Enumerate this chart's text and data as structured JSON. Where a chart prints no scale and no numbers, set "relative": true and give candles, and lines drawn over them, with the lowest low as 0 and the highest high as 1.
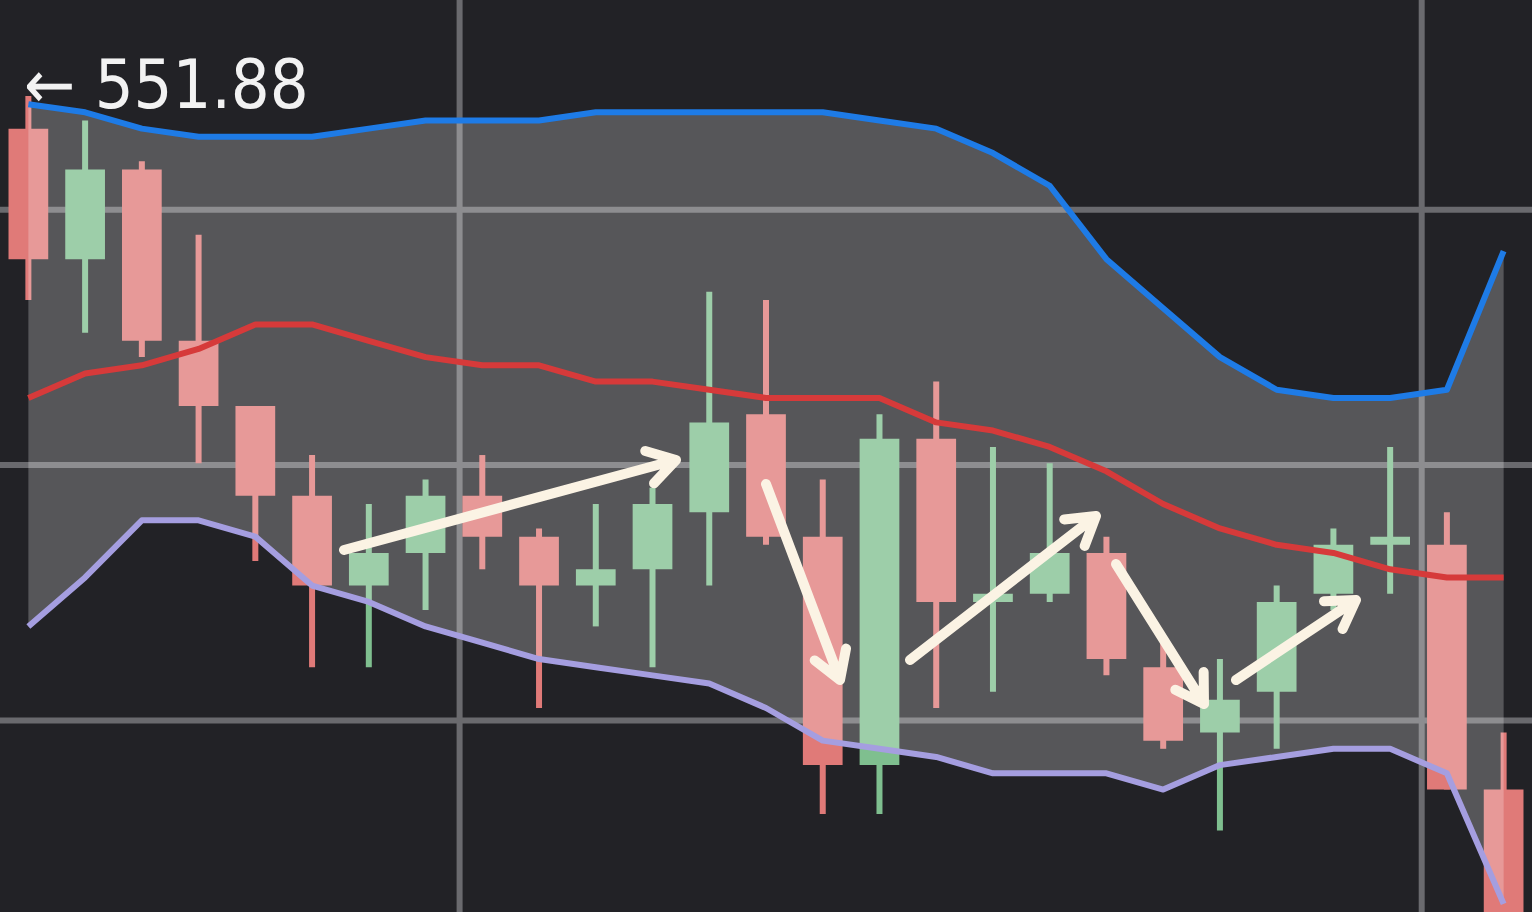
{
  "chart_data": {
    "type": "candlestick",
    "relative": true,
    "grid": true,
    "categories": [
      null,
      null,
      null,
      null,
      null,
      null,
      null,
      null,
      null,
      null,
      null,
      null,
      null,
      null,
      null,
      null,
      null,
      null,
      null,
      null,
      null,
      null,
      null,
      null,
      null,
      null,
      null
    ],
    "ohlc": [
      [
        0.96,
        1.0,
        0.75,
        0.8
      ],
      [
        0.8,
        0.97,
        0.71,
        0.91
      ],
      [
        0.91,
        0.92,
        0.68,
        0.7
      ],
      [
        0.7,
        0.83,
        0.55,
        0.62
      ],
      [
        0.62,
        0.62,
        0.43,
        0.51
      ],
      [
        0.51,
        0.56,
        0.3,
        0.4
      ],
      [
        0.4,
        0.5,
        0.3,
        0.44
      ],
      [
        0.44,
        0.53,
        0.37,
        0.51
      ],
      [
        0.51,
        0.56,
        0.42,
        0.46
      ],
      [
        0.46,
        0.47,
        0.25,
        0.4
      ],
      [
        0.4,
        0.5,
        0.35,
        0.42
      ],
      [
        0.42,
        0.52,
        0.3,
        0.5
      ],
      [
        0.49,
        0.76,
        0.4,
        0.6
      ],
      [
        0.61,
        0.75,
        0.45,
        0.46
      ],
      [
        0.46,
        0.53,
        0.12,
        0.18
      ],
      [
        0.18,
        0.61,
        0.12,
        0.58
      ],
      [
        0.58,
        0.65,
        0.25,
        0.38
      ],
      [
        0.38,
        0.57,
        0.27,
        0.39
      ],
      [
        0.39,
        0.55,
        0.38,
        0.44
      ],
      [
        0.44,
        0.46,
        0.29,
        0.31
      ],
      [
        0.3,
        0.33,
        0.2,
        0.21
      ],
      [
        0.22,
        0.31,
        0.1,
        0.26
      ],
      [
        0.27,
        0.4,
        0.2,
        0.38
      ],
      [
        0.39,
        0.47,
        0.37,
        0.45
      ],
      [
        0.45,
        0.57,
        0.39,
        0.46
      ],
      [
        0.45,
        0.49,
        0.15,
        0.15
      ],
      [
        0.15,
        0.22,
        0.0,
        0.0
      ]
    ],
    "series": [
      {
        "type": "line",
        "color": "#1e7be6",
        "values": [
          0.99,
          0.98,
          0.96,
          0.95,
          0.95,
          0.95,
          0.96,
          0.97,
          0.97,
          0.97,
          0.98,
          0.98,
          0.98,
          0.98,
          0.98,
          0.97,
          0.96,
          0.93,
          0.89,
          0.8,
          0.74,
          0.68,
          0.64,
          0.63,
          0.63,
          0.64,
          0.81
        ]
      },
      {
        "type": "line",
        "color": "#d63a3a",
        "values": [
          0.63,
          0.66,
          0.67,
          0.69,
          0.72,
          0.72,
          0.7,
          0.68,
          0.67,
          0.67,
          0.65,
          0.65,
          0.64,
          0.63,
          0.63,
          0.63,
          0.6,
          0.59,
          0.57,
          0.54,
          0.5,
          0.47,
          0.45,
          0.44,
          0.42,
          0.41,
          0.41
        ],
        "upper": [
          0.99,
          0.98,
          0.96,
          0.95,
          0.95,
          0.95,
          0.96,
          0.97,
          0.97,
          0.97,
          0.98,
          0.98,
          0.98,
          0.98,
          0.98,
          0.97,
          0.96,
          0.93,
          0.89,
          0.8,
          0.74,
          0.68,
          0.64,
          0.63,
          0.63,
          0.64,
          0.81
        ],
        "lower": [
          0.35,
          0.41,
          0.48,
          0.48,
          0.46,
          0.4,
          0.38,
          0.35,
          0.33,
          0.31,
          0.3,
          0.29,
          0.28,
          0.25,
          0.21,
          0.2,
          0.19,
          0.17,
          0.17,
          0.17,
          0.15,
          0.18,
          0.19,
          0.2,
          0.2,
          0.17,
          0.01
        ]
      },
      {
        "type": "line",
        "color": "#a59ee0",
        "values": [
          0.35,
          0.41,
          0.48,
          0.48,
          0.46,
          0.4,
          0.38,
          0.35,
          0.33,
          0.31,
          0.3,
          0.29,
          0.28,
          0.25,
          0.21,
          0.2,
          0.19,
          0.17,
          0.17,
          0.17,
          0.15,
          0.18,
          0.19,
          0.2,
          0.2,
          0.17,
          0.01
        ]
      }
    ],
    "annotations": [
      "← 551.88"
    ]
  }
}
